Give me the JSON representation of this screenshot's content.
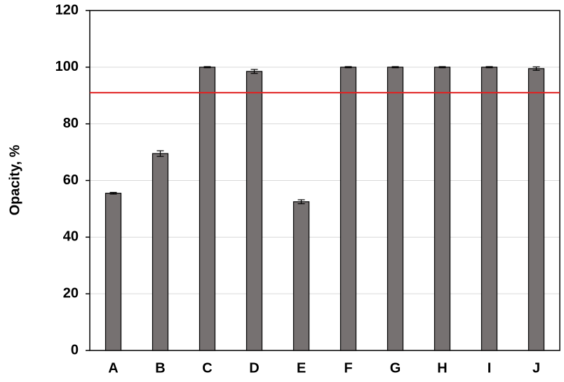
{
  "chart_data": {
    "type": "bar",
    "y_label": "Opacity, %",
    "categories": [
      "A",
      "B",
      "C",
      "D",
      "E",
      "F",
      "G",
      "H",
      "I",
      "J"
    ],
    "values": [
      55.5,
      69.5,
      100,
      98.5,
      52.5,
      100,
      100,
      100,
      100,
      99.5
    ],
    "errors": [
      0.3,
      1,
      0.2,
      0.7,
      0.7,
      0.2,
      0.2,
      0.2,
      0.2,
      0.6
    ],
    "color": "#767171",
    "reference_line": 91,
    "reference_color": "#e02020",
    "ylim": [
      0,
      120
    ],
    "yticks": [
      0,
      20,
      40,
      60,
      80,
      100,
      120
    ],
    "grid": true
  }
}
